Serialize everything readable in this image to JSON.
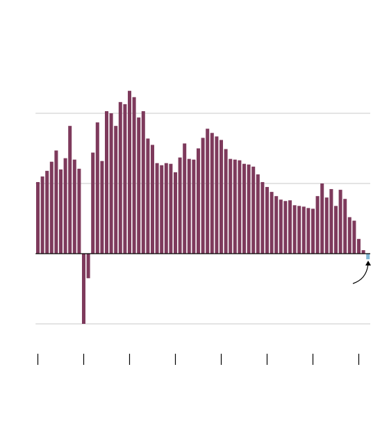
{
  "chart_data": {
    "type": "bar",
    "x": [
      0,
      1,
      2,
      3,
      4,
      5,
      6,
      7,
      8,
      9,
      10,
      11,
      12,
      13,
      14,
      15,
      16,
      17,
      18,
      19,
      20,
      21,
      22,
      23,
      24,
      25,
      26,
      27,
      28,
      29,
      30,
      31,
      32,
      33,
      34,
      35,
      36,
      37,
      38,
      39,
      40,
      41,
      42,
      43,
      44,
      45,
      46,
      47,
      48,
      49,
      50,
      51,
      52,
      53,
      54,
      55,
      56,
      57,
      58,
      59,
      60,
      61,
      62,
      63,
      64,
      65,
      66,
      67,
      68,
      69,
      70,
      71,
      72
    ],
    "series": [
      {
        "color": "#7e3a5c",
        "values": [
          1.02,
          1.1,
          1.18,
          1.31,
          1.47,
          1.2,
          1.36,
          1.82,
          1.34,
          1.21,
          -1.0,
          -0.35,
          1.44,
          1.87,
          1.32,
          2.03,
          2.0,
          1.82,
          2.16,
          2.13,
          2.32,
          2.23,
          1.94,
          2.03,
          1.64,
          1.55,
          1.29,
          1.26,
          1.29,
          1.28,
          1.16,
          1.37,
          1.57,
          1.35,
          1.34,
          1.5,
          1.65,
          1.78,
          1.72,
          1.67,
          1.62,
          1.49,
          1.35,
          1.34,
          1.33,
          1.28,
          1.27,
          1.24,
          1.13,
          1.02,
          0.95,
          0.88,
          0.82,
          0.77,
          0.75,
          0.76,
          0.69,
          0.68,
          0.67,
          0.65,
          0.64,
          0.82,
          1.0,
          0.8,
          0.92,
          0.68,
          0.91,
          0.78,
          0.52,
          0.47,
          0.21,
          0.05,
          null
        ]
      },
      {
        "color": "#7fb7d4",
        "values": [
          null,
          null,
          null,
          null,
          null,
          null,
          null,
          null,
          null,
          null,
          null,
          null,
          null,
          null,
          null,
          null,
          null,
          null,
          null,
          null,
          null,
          null,
          null,
          null,
          null,
          null,
          null,
          null,
          null,
          null,
          null,
          null,
          null,
          null,
          null,
          null,
          null,
          null,
          null,
          null,
          null,
          null,
          null,
          null,
          null,
          null,
          null,
          null,
          null,
          null,
          null,
          null,
          null,
          null,
          null,
          null,
          null,
          null,
          null,
          null,
          null,
          null,
          null,
          null,
          null,
          null,
          null,
          null,
          null,
          null,
          null,
          null,
          -0.08
        ]
      }
    ],
    "xlim": [
      -0.5,
      72.5
    ],
    "xticks": [
      0,
      10,
      20,
      30,
      40,
      50,
      60,
      70
    ],
    "ylim": [
      -1.5,
      2.5
    ],
    "yticks": [
      -1,
      0,
      1,
      2
    ],
    "grid": true
  }
}
